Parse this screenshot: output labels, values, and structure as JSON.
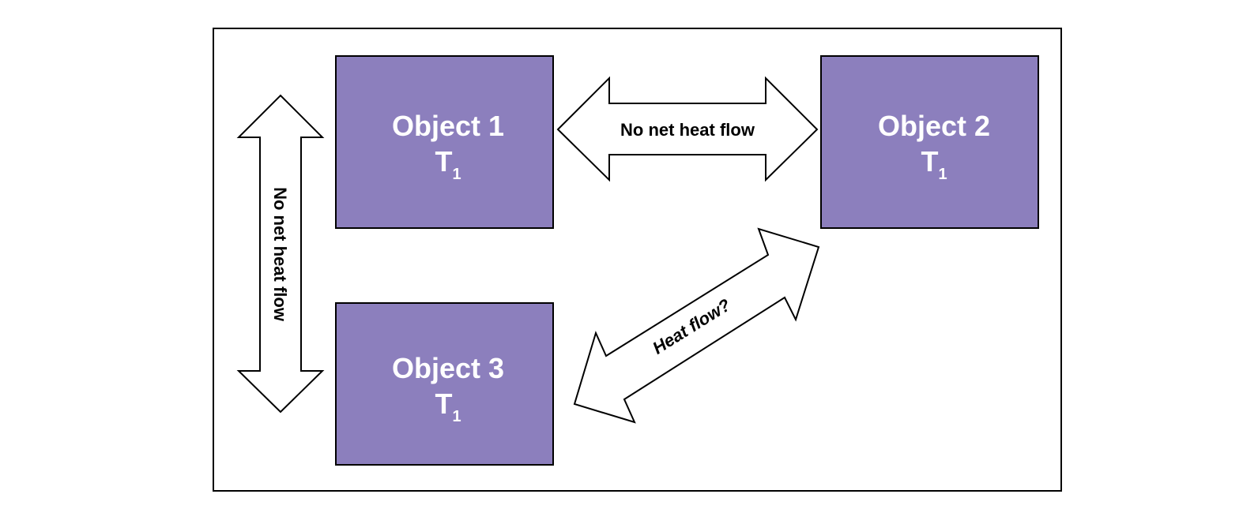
{
  "colors": {
    "object_fill": "#8c7fbd",
    "object_stroke": "#000000",
    "object_text": "#ffffff",
    "arrow_fill": "#ffffff",
    "arrow_stroke": "#000000",
    "frame_stroke": "#000000"
  },
  "objects": [
    {
      "label": "Object 1",
      "temp_symbol": "T",
      "temp_subscript": "1"
    },
    {
      "label": "Object 2",
      "temp_symbol": "T",
      "temp_subscript": "1"
    },
    {
      "label": "Object 3",
      "temp_symbol": "T",
      "temp_subscript": "1"
    }
  ],
  "arrows": {
    "obj1_obj2": {
      "label": "No net heat flow"
    },
    "obj1_obj3": {
      "label": "No net heat flow"
    },
    "obj2_obj3": {
      "label": "Heat flow?"
    }
  }
}
